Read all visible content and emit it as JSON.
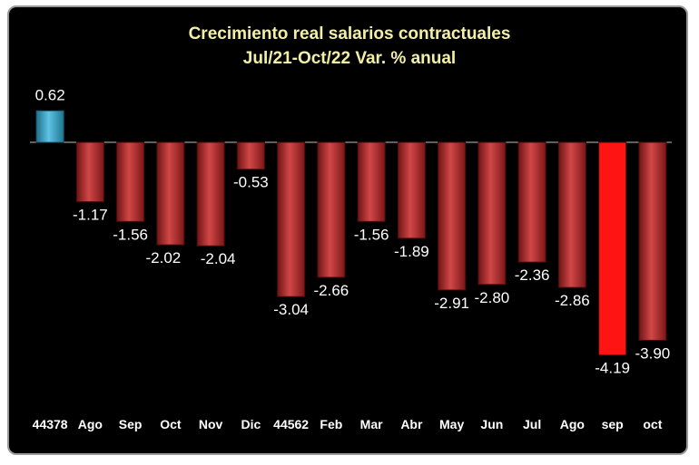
{
  "chart_data": {
    "type": "bar",
    "title": "Crecimiento real salarios contractuales",
    "subtitle": "Jul/21-Oct/22 Var. % anual",
    "categories": [
      "44378",
      "Ago",
      "Sep",
      "Oct",
      "Nov",
      "Dic",
      "44562",
      "Feb",
      "Mar",
      "Abr",
      "May",
      "Jun",
      "Jul",
      "Ago",
      "sep",
      "oct"
    ],
    "values": [
      0.62,
      -1.17,
      -1.56,
      -2.02,
      -2.04,
      -0.53,
      -3.04,
      -2.66,
      -1.56,
      -1.89,
      -2.91,
      -2.8,
      -2.36,
      -2.86,
      -4.19,
      -3.9
    ],
    "value_labels": [
      "0.62",
      "-1.17",
      "-1.56",
      "-2.02",
      "-2.04",
      "-0.53",
      "-3.04",
      "-2.66",
      "-1.56",
      "-1.89",
      "-2.91",
      "-2.80",
      "-2.36",
      "-2.86",
      "-4.19",
      "-3.90"
    ],
    "grid": false,
    "legend": "none",
    "colors": {
      "background": "#000000",
      "positive_bar": "#3aa6c8",
      "negative_bar": "#b52b2b",
      "highlight_bar": "#ff1414",
      "title": "#f3f0a6",
      "text": "#ffffff",
      "axis": "#bfbfbf"
    },
    "highlight_index": 14
  }
}
